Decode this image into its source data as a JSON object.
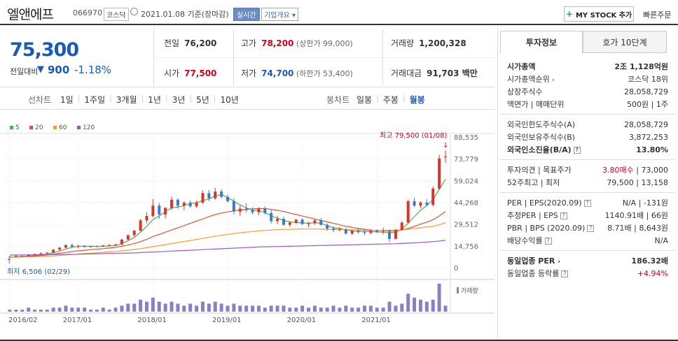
{
  "header": {
    "company": "엘앤에프",
    "code": "066970",
    "market": "코스닥",
    "date": "2021.01.08 기준(장마감)",
    "realtime": "실시간",
    "overview": "기업개요",
    "mystock": "MY STOCK 추가",
    "quick_order": "빠른주문"
  },
  "price": {
    "current": "75,300",
    "prev_label": "전일대비",
    "change": "900",
    "change_pct": "-1.18%"
  },
  "stats": {
    "prev_close_label": "전일",
    "prev_close": "76,200",
    "high_label": "고가",
    "high": "78,200",
    "upper_limit": "(상한가 99,000)",
    "volume_label": "거래량",
    "volume": "1,200,328",
    "open_label": "시가",
    "open": "77,500",
    "low_label": "저가",
    "low": "74,700",
    "lower_limit": "(하한가 53,400)",
    "amount_label": "거래대금",
    "amount": "91,703 백만"
  },
  "periods": {
    "line_label": "선차트",
    "items": [
      "1일",
      "1주일",
      "3개월",
      "1년",
      "3년",
      "5년",
      "10년"
    ],
    "candle_label": "봉차트",
    "candles": [
      "일봉",
      "주봉",
      "월봉"
    ],
    "active_candle": "월봉"
  },
  "chart_data": {
    "type": "candlestick",
    "legend": [
      {
        "name": "5",
        "color": "#4cb050"
      },
      {
        "name": "20",
        "color": "#e0533a"
      },
      {
        "name": "60",
        "color": "#f0a030"
      },
      {
        "name": "120",
        "color": "#9b59c6"
      }
    ],
    "y_ticks": [
      "88,535",
      "73,779",
      "59,024",
      "44,268",
      "29,512",
      "14,756",
      "0"
    ],
    "ylim": [
      0,
      88535
    ],
    "x_ticks": [
      "2016/02",
      "2017/01",
      "2018/01",
      "2019/01",
      "2020/01",
      "2021/01"
    ],
    "max_label": "최고 79,500 (01/08)",
    "min_label": "최저 6,506 (02/29)",
    "volume_label": "거래량",
    "up_color": "#d9352b",
    "down_color": "#3d78c9",
    "candles": [
      [
        7000,
        7600,
        6506,
        7500
      ],
      [
        7500,
        8300,
        7200,
        8000
      ],
      [
        8000,
        8400,
        7600,
        7800
      ],
      [
        7800,
        8800,
        7500,
        8600
      ],
      [
        8600,
        9500,
        8200,
        9200
      ],
      [
        9200,
        10200,
        8900,
        9800
      ],
      [
        9800,
        10500,
        9300,
        10200
      ],
      [
        10200,
        12500,
        10000,
        12200
      ],
      [
        12200,
        14000,
        11500,
        13500
      ],
      [
        13500,
        16000,
        13000,
        15200
      ],
      [
        15200,
        16500,
        13800,
        14200
      ],
      [
        14200,
        15500,
        13000,
        14800
      ],
      [
        14800,
        15200,
        13600,
        14000
      ],
      [
        14000,
        14800,
        13500,
        14500
      ],
      [
        14500,
        15000,
        13900,
        14300
      ],
      [
        14300,
        15500,
        14000,
        15000
      ],
      [
        15000,
        15800,
        14500,
        15400
      ],
      [
        15400,
        16200,
        14800,
        15700
      ],
      [
        15700,
        19500,
        15200,
        19000
      ],
      [
        19000,
        22500,
        18500,
        22000
      ],
      [
        22000,
        25500,
        21000,
        25000
      ],
      [
        25000,
        33000,
        24500,
        32000
      ],
      [
        32000,
        37500,
        30000,
        35000
      ],
      [
        35000,
        46500,
        34000,
        42000
      ],
      [
        42000,
        44000,
        33000,
        36000
      ],
      [
        36000,
        41000,
        33500,
        40500
      ],
      [
        40500,
        48000,
        39000,
        46000
      ],
      [
        46000,
        47000,
        40000,
        42000
      ],
      [
        42000,
        45000,
        39000,
        44000
      ],
      [
        44000,
        45500,
        40500,
        41500
      ],
      [
        41500,
        45500,
        40500,
        44000
      ],
      [
        44000,
        52500,
        43000,
        50500
      ],
      [
        50500,
        52500,
        45000,
        47000
      ],
      [
        47000,
        54000,
        46000,
        51500
      ],
      [
        51500,
        53000,
        47000,
        48000
      ],
      [
        48000,
        49500,
        44000,
        45000
      ],
      [
        45000,
        47000,
        36000,
        38000
      ],
      [
        38000,
        42000,
        35000,
        40000
      ],
      [
        40000,
        43500,
        37500,
        39000
      ],
      [
        39000,
        41000,
        36000,
        37500
      ],
      [
        37500,
        41000,
        35500,
        40000
      ],
      [
        40000,
        41500,
        36000,
        37000
      ],
      [
        37000,
        39000,
        30000,
        31500
      ],
      [
        31500,
        35000,
        29500,
        33000
      ],
      [
        33000,
        34500,
        28500,
        29000
      ],
      [
        29000,
        31500,
        27500,
        30500
      ],
      [
        30500,
        33000,
        29500,
        32500
      ],
      [
        32500,
        33500,
        29000,
        29500
      ],
      [
        29500,
        31000,
        27500,
        30000
      ],
      [
        30000,
        33000,
        29000,
        32000
      ],
      [
        32000,
        33500,
        28500,
        29000
      ],
      [
        29000,
        30000,
        25000,
        26500
      ],
      [
        26500,
        28000,
        24000,
        25500
      ],
      [
        25500,
        27500,
        24500,
        26000
      ],
      [
        26000,
        27000,
        22500,
        23000
      ],
      [
        23000,
        25500,
        22000,
        25000
      ],
      [
        25000,
        26500,
        23000,
        24000
      ],
      [
        24000,
        25500,
        22000,
        23500
      ],
      [
        23500,
        26000,
        22500,
        25000
      ],
      [
        25000,
        26000,
        23500,
        24000
      ],
      [
        24000,
        27000,
        22500,
        24500
      ],
      [
        24500,
        26000,
        17500,
        19500
      ],
      [
        19500,
        26500,
        19000,
        25500
      ],
      [
        25500,
        31500,
        25000,
        30500
      ],
      [
        30500,
        46000,
        30000,
        45000
      ],
      [
        45000,
        47500,
        41000,
        42000
      ],
      [
        42000,
        45000,
        40500,
        44000
      ],
      [
        44000,
        46500,
        41500,
        42500
      ],
      [
        42500,
        55000,
        41500,
        53500
      ],
      [
        53500,
        76500,
        52500,
        74000
      ],
      [
        75000,
        79500,
        71000,
        75300
      ]
    ],
    "ma_series": [
      {
        "name": "5",
        "values": [
          7000,
          7400,
          7600,
          7800,
          8200,
          8700,
          9200,
          10000,
          11200,
          12600,
          13800,
          14400,
          14600,
          14500,
          14400,
          14500,
          14700,
          15000,
          16200,
          18200,
          20500,
          24000,
          28000,
          32500,
          35000,
          38000,
          40500,
          41000,
          42000,
          43500,
          44000,
          45500,
          46500,
          48500,
          49500,
          47500,
          45000,
          42500,
          40500,
          39000,
          38500,
          37500,
          35000,
          33500,
          32000,
          31000,
          30500,
          30500,
          30000,
          30500,
          30000,
          28500,
          27000,
          26500,
          25500,
          25000,
          24500,
          24500,
          24500,
          24200,
          24000,
          23500,
          24000,
          26000,
          30000,
          34500,
          39000,
          42000,
          46000,
          53000,
          60000
        ]
      },
      {
        "name": "20",
        "values": [
          7000,
          7200,
          7400,
          7600,
          7900,
          8200,
          8600,
          9100,
          9700,
          10300,
          10900,
          11400,
          11800,
          12200,
          12500,
          12900,
          13300,
          13800,
          14500,
          15300,
          16300,
          17600,
          19200,
          21000,
          22500,
          24000,
          25500,
          27000,
          28500,
          30000,
          31500,
          33000,
          34500,
          36000,
          37000,
          37800,
          38500,
          39000,
          39500,
          39800,
          40000,
          40000,
          39500,
          38800,
          38000,
          37000,
          36000,
          35000,
          34000,
          33000,
          32000,
          31000,
          30000,
          29000,
          28000,
          27200,
          26500,
          26000,
          25500,
          25200,
          25000,
          24800,
          25000,
          25500,
          26500,
          28000,
          29500,
          30800,
          32500,
          35000,
          38000
        ]
      },
      {
        "name": "60",
        "values": [
          7000,
          7100,
          7200,
          7300,
          7400,
          7600,
          7800,
          8000,
          8300,
          8600,
          8900,
          9200,
          9500,
          9800,
          10100,
          10400,
          10700,
          11000,
          11400,
          11800,
          12300,
          12900,
          13500,
          14200,
          14900,
          15600,
          16300,
          17000,
          17700,
          18400,
          19100,
          19800,
          20500,
          21200,
          21900,
          22500,
          23100,
          23600,
          24100,
          24500,
          24900,
          25200,
          25500,
          25700,
          25900,
          26000,
          26100,
          26200,
          26200,
          26200,
          26100,
          26000,
          25900,
          25800,
          25700,
          25600,
          25500,
          25400,
          25300,
          25300,
          25300,
          25300,
          25400,
          25600,
          26000,
          26500,
          27000,
          27500,
          28000,
          29000,
          30500
        ]
      },
      {
        "name": "120",
        "values": [
          8500,
          8550,
          8600,
          8650,
          8700,
          8750,
          8800,
          8850,
          8900,
          8950,
          9000,
          9100,
          9200,
          9300,
          9400,
          9500,
          9600,
          9700,
          9800,
          9900,
          10000,
          10200,
          10400,
          10600,
          10800,
          11000,
          11200,
          11400,
          11600,
          11800,
          12000,
          12200,
          12400,
          12600,
          12800,
          13000,
          13200,
          13400,
          13600,
          13800,
          14000,
          14100,
          14200,
          14300,
          14400,
          14500,
          14600,
          14700,
          14800,
          14900,
          15000,
          15100,
          15200,
          15300,
          15400,
          15500,
          15600,
          15700,
          15800,
          15900,
          16000,
          16100,
          16200,
          16400,
          16600,
          16800,
          17000,
          17300,
          17600,
          18000,
          18500
        ]
      }
    ],
    "volume": [
      1,
      1,
      1,
      2,
      1,
      1,
      1,
      2,
      2,
      3,
      2,
      2,
      2,
      1,
      1,
      2,
      1,
      2,
      3,
      4,
      4,
      6,
      5,
      7,
      5,
      4,
      5,
      4,
      3,
      4,
      3,
      5,
      4,
      5,
      4,
      3,
      4,
      3,
      3,
      3,
      3,
      2,
      3,
      3,
      3,
      2,
      2,
      3,
      2,
      3,
      2,
      2,
      3,
      2,
      3,
      2,
      2,
      3,
      3,
      2,
      2,
      5,
      3,
      4,
      9,
      7,
      6,
      5,
      6,
      14,
      3
    ]
  },
  "invest": {
    "tabs": [
      "투자정보",
      "호가 10단계"
    ],
    "market_cap_label": "시가총액",
    "market_cap": "2조 1,128억원",
    "rank_label": "시가총액순위",
    "rank": "코스닥 18위",
    "shares_label": "상장주식수",
    "shares": "28,058,729",
    "par_label": "액면가 | 매매단위",
    "par": "500원 | 1주",
    "foreign_limit_label": "외국인한도주식수(A)",
    "foreign_limit": "28,058,729",
    "foreign_hold_label": "외국인보유주식수(B)",
    "foreign_hold": "3,872,253",
    "foreign_ratio_label": "외국인소진율(B/A)",
    "foreign_ratio": "13.80%",
    "opinion_label": "투자의견 | 목표주가",
    "opinion": "3.80매수",
    "target": "73,000",
    "w52_label": "52주최고 | 최저",
    "w52": "79,500 | 13,158",
    "per_label": "PER | EPS(2020.09)",
    "per": "N/A | -131원",
    "est_per_label": "추정PER | EPS",
    "est_per": "1140.91배 | 66원",
    "pbr_label": "PBR | BPS (2020.09)",
    "pbr": "8.71배 | 8,643원",
    "div_label": "배당수익률",
    "div": "N/A",
    "ind_per_label": "동일업종 PER",
    "ind_per": "186.32배",
    "ind_chg_label": "동일업종 등락률",
    "ind_chg": "+4.94%"
  }
}
